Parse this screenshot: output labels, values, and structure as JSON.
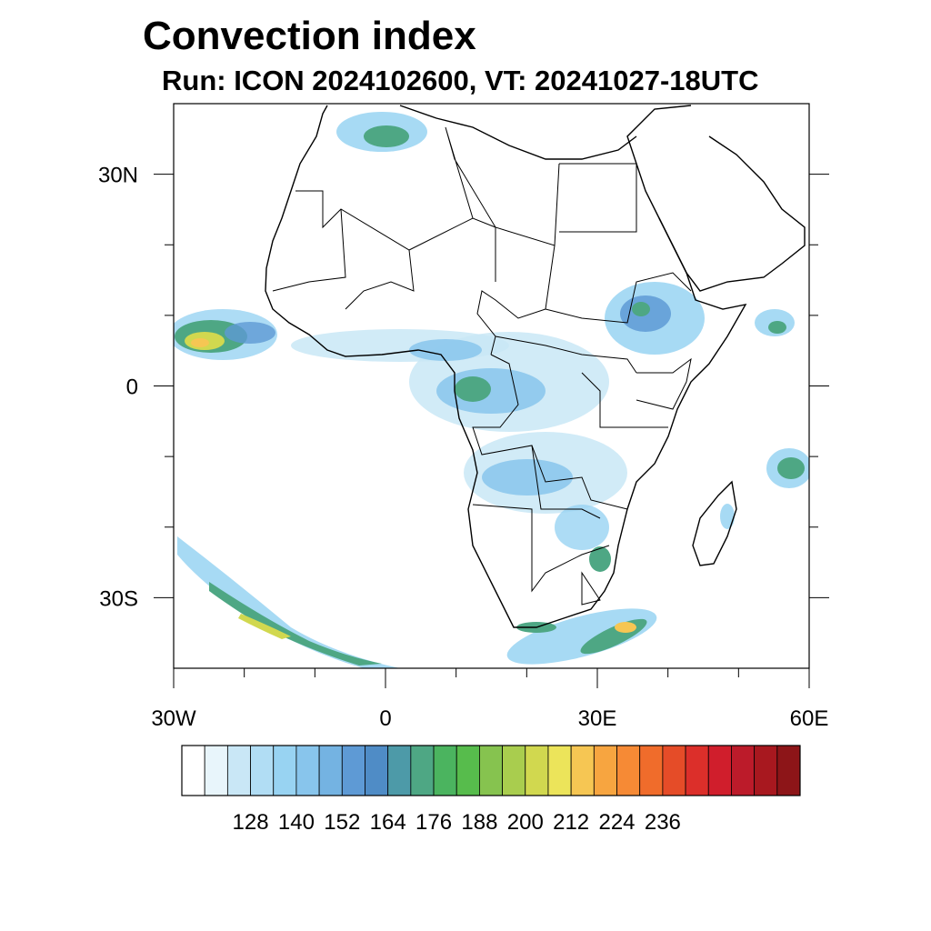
{
  "title": "Convection index",
  "subtitle": "Run: ICON 2024102600,  VT: 20241027-18UTC",
  "map": {
    "lon_range": [
      -30,
      60
    ],
    "lat_range": [
      -40,
      40
    ],
    "x_ticks": [
      {
        "lon": -30,
        "label": "30W"
      },
      {
        "lon": 0,
        "label": "0"
      },
      {
        "lon": 30,
        "label": "30E"
      },
      {
        "lon": 60,
        "label": "60E"
      }
    ],
    "y_ticks": [
      {
        "lat": 30,
        "label": "30N"
      },
      {
        "lat": 0,
        "label": "0"
      },
      {
        "lat": -30,
        "label": "30S"
      }
    ]
  },
  "colorbar": {
    "colors": [
      "#ffffff",
      "#e8f5fb",
      "#c9e7f6",
      "#b1ddf4",
      "#98d3f2",
      "#88c5ec",
      "#74b3e2",
      "#5e9ad5",
      "#4f8cc6",
      "#4d9aa8",
      "#4ea784",
      "#4bb45f",
      "#57bc4c",
      "#86c34f",
      "#a9cd4e",
      "#d1d84f",
      "#ece45a",
      "#f6c653",
      "#f7a540",
      "#f68a35",
      "#f06c2b",
      "#e54c28",
      "#dc2f2a",
      "#d01e2c",
      "#bc1b2a",
      "#a8181f",
      "#8d1518"
    ],
    "labels": [
      "128",
      "140",
      "152",
      "164",
      "176",
      "188",
      "200",
      "212",
      "224",
      "236"
    ]
  }
}
